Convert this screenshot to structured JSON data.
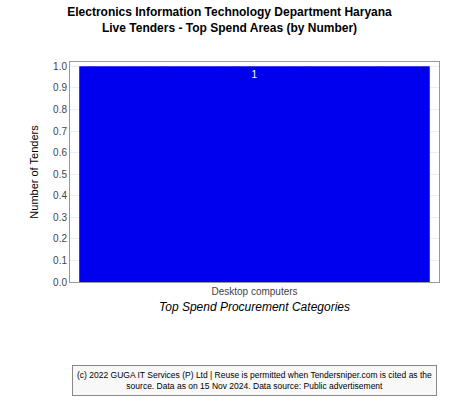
{
  "chart_data": {
    "type": "bar",
    "title": "Electronics Information Technology Department Haryana\nLive Tenders - Top Spend Areas (by Number)",
    "xlabel": "Top Spend Procurement Categories",
    "ylabel": "Number of Tenders",
    "categories": [
      "Desktop computers"
    ],
    "values": [
      1
    ],
    "color": "#0000EE",
    "data_labels": true,
    "ylim": [
      0.0,
      1.02
    ],
    "yticks": [
      {
        "value": 0,
        "label": "0.0"
      },
      0.1,
      0.2,
      0.3,
      0.4,
      0.5,
      0.6,
      0.7,
      0.8,
      0.9,
      {
        "value": 1,
        "label": "1.0"
      }
    ],
    "grid": true,
    "annotations": [
      "(c) 2022 GUGA IT Services (P) Ltd | Reuse is permitted when Tendersniper.com is cited as the\nsource. Data as on 15 Nov 2024. Data source: Public advertisement"
    ]
  }
}
